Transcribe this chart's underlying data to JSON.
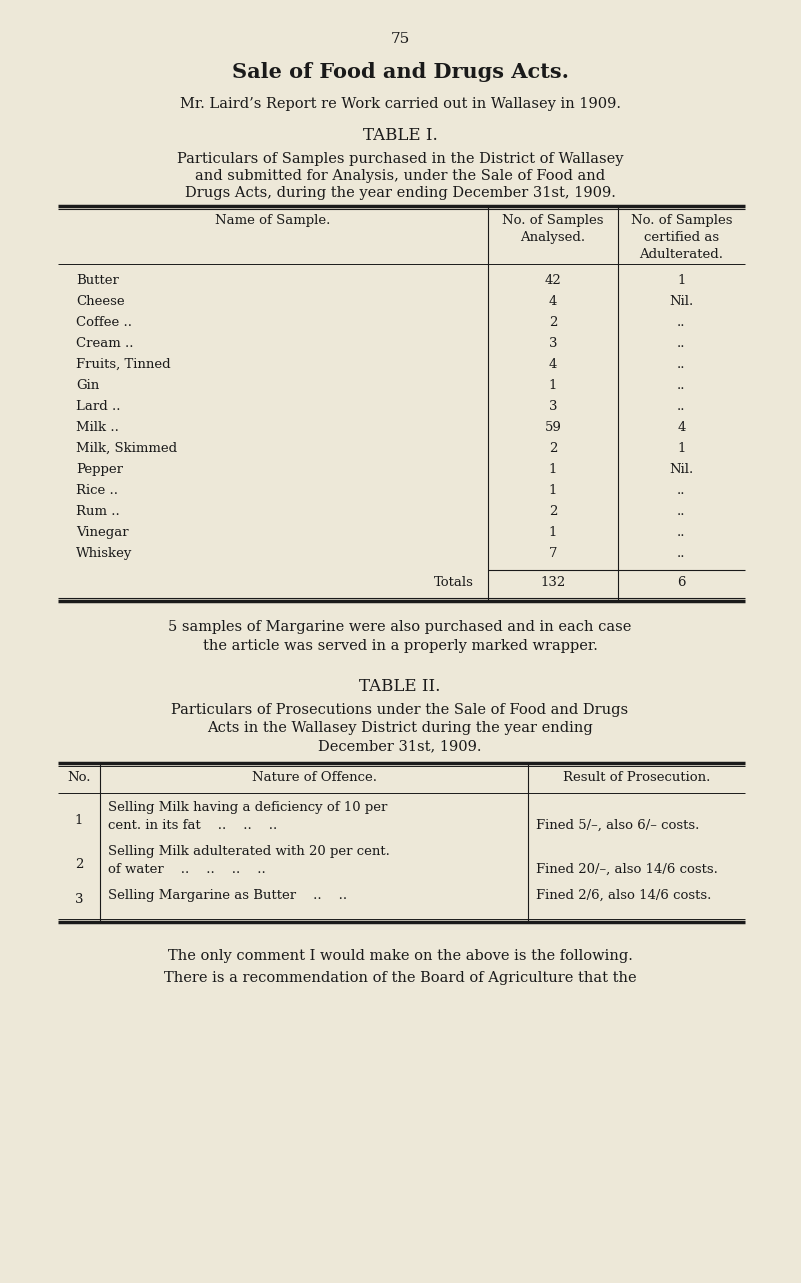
{
  "bg_color": "#ede8d8",
  "text_color": "#1a1a1a",
  "page_number": "75",
  "title": "Sale of Food and Drugs Acts.",
  "subtitle": "Mr. Laird’s Report re Work carried out in Wallasey in 1909.",
  "table1_heading": "TABLE I.",
  "table1_desc_lines": [
    "Particulars of Samples purchased in the District of Wallasey",
    "and submitted for Analysis, under the Sale of Food and",
    "Drugs Acts, during the year ending December 31st, 1909."
  ],
  "table1_col_headers": [
    "Name of Sample.",
    "No. of Samples\nAnalysed.",
    "No. of Samples\ncertified as\nAdulterated."
  ],
  "table1_rows": [
    [
      "Butter",
      "42",
      "1"
    ],
    [
      "Cheese",
      "4",
      "Nil."
    ],
    [
      "Coffee ..",
      "2",
      ".."
    ],
    [
      "Cream ..",
      "3",
      ".."
    ],
    [
      "Fruits, Tinned",
      "4",
      ".."
    ],
    [
      "Gin",
      "1",
      ".."
    ],
    [
      "Lard ..",
      "3",
      ".."
    ],
    [
      "Milk ..",
      "59",
      "4"
    ],
    [
      "Milk, Skimmed",
      "2",
      "1"
    ],
    [
      "Pepper",
      "1",
      "Nil."
    ],
    [
      "Rice ..",
      "1",
      ".."
    ],
    [
      "Rum ..",
      "2",
      ".."
    ],
    [
      "Vinegar",
      "1",
      ".."
    ],
    [
      "Whiskey",
      "7",
      ".."
    ]
  ],
  "table1_totals": [
    "Totals",
    "132",
    "6"
  ],
  "margarine_note_lines": [
    "5 samples of Margarine were also purchased and in each case",
    "the article was served in a properly marked wrapper."
  ],
  "table2_heading": "TABLE II.",
  "table2_desc_lines": [
    "Particulars of Prosecutions under the Sale of Food and Drugs",
    "Acts in the Wallasey District during the year ending",
    "December 31st, 1909."
  ],
  "table2_col_headers": [
    "No.",
    "Nature of Offence.",
    "Result of Prosecution."
  ],
  "table2_rows": [
    {
      "no": "1",
      "offence_lines": [
        "Selling Milk having a deficiency of 10 per",
        "cent. in its fat    ..    ..    .."
      ],
      "result": "Fined 5/–, also 6/– costs."
    },
    {
      "no": "2",
      "offence_lines": [
        "Selling Milk adulterated with 20 per cent.",
        "of water    ..    ..    ..    .."
      ],
      "result": "Fined 20/–, also 14/6 costs."
    },
    {
      "no": "3",
      "offence_lines": [
        "Selling Margarine as Butter    ..    .."
      ],
      "result": "Fined 2/6, also 14/6 costs."
    }
  ],
  "closing_lines": [
    "The only comment I would make on the above is the following.",
    "There is a recommendation of the Board of Agriculture that the"
  ]
}
